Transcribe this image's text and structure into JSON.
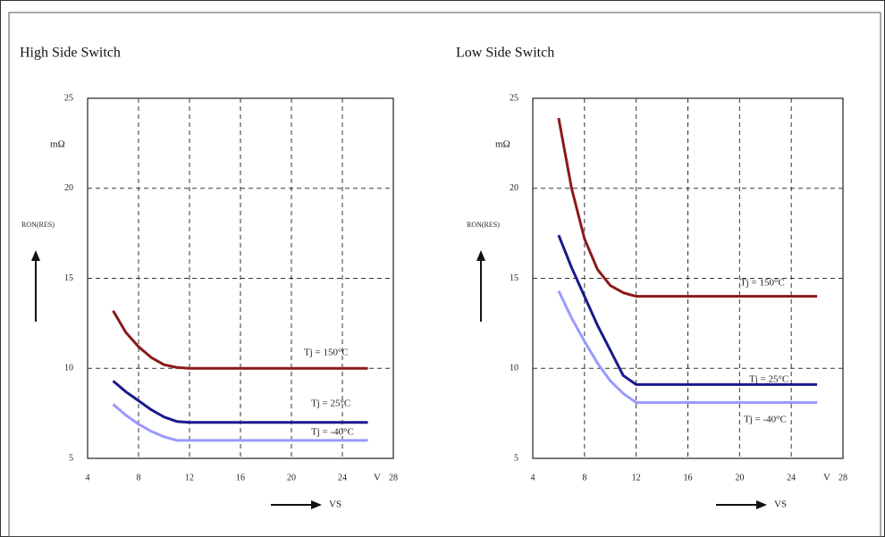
{
  "chart_data": [
    {
      "type": "line",
      "title": "High Side Switch",
      "y_unit": "mΩ",
      "y_label": "RON(RES)",
      "x_label": "VS",
      "x_unit": "V",
      "x": [
        6,
        7,
        8,
        9,
        10,
        11,
        12,
        26
      ],
      "xlim": [
        4,
        28
      ],
      "xticks": [
        4,
        8,
        12,
        16,
        20,
        24,
        28
      ],
      "ylim": [
        5,
        25
      ],
      "yticks": [
        5,
        10,
        15,
        20,
        25
      ],
      "grid": true,
      "series": [
        {
          "name": "Tj = 150°C",
          "color": "#8b1a1a",
          "values": [
            13.2,
            12.0,
            11.2,
            10.6,
            10.2,
            10.05,
            10.0,
            10.0
          ]
        },
        {
          "name": "Tj = 25°C",
          "color": "#1a1a8c",
          "values": [
            9.3,
            8.7,
            8.2,
            7.7,
            7.3,
            7.05,
            7.0,
            7.0
          ]
        },
        {
          "name": "Tj = -40°C",
          "color": "#9a9aff",
          "values": [
            8.0,
            7.4,
            6.9,
            6.5,
            6.2,
            6.0,
            6.0,
            6.0
          ]
        }
      ]
    },
    {
      "type": "line",
      "title": "Low Side Switch",
      "y_unit": "mΩ",
      "y_label": "RON(RES)",
      "x_label": "VS",
      "x_unit": "V",
      "x": [
        6,
        7,
        8,
        9,
        10,
        11,
        12,
        26
      ],
      "xlim": [
        4,
        28
      ],
      "xticks": [
        4,
        8,
        12,
        16,
        20,
        24,
        28
      ],
      "ylim": [
        5,
        25
      ],
      "yticks": [
        5,
        10,
        15,
        20,
        25
      ],
      "grid": true,
      "series": [
        {
          "name": "Tj = 150°C",
          "color": "#8b1a1a",
          "values": [
            23.9,
            20.0,
            17.2,
            15.5,
            14.6,
            14.2,
            14.0,
            14.0
          ]
        },
        {
          "name": "Tj = 25°C",
          "color": "#1a1a8c",
          "values": [
            17.4,
            15.6,
            14.0,
            12.4,
            11.0,
            9.6,
            9.1,
            9.1
          ]
        },
        {
          "name": "Tj = -40°C",
          "color": "#9a9aff",
          "values": [
            14.3,
            12.8,
            11.5,
            10.3,
            9.3,
            8.6,
            8.1,
            8.1
          ]
        }
      ]
    }
  ]
}
